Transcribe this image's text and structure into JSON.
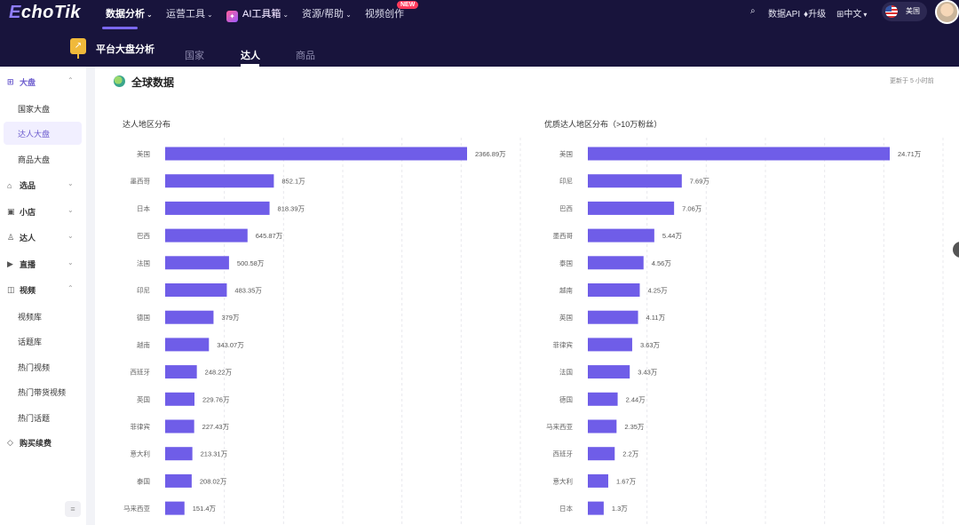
{
  "app": {
    "logo_e": "E",
    "logo_rest": "choTik"
  },
  "topnav": {
    "items": [
      {
        "label": "数据分析",
        "active": true,
        "caret": true
      },
      {
        "label": "运营工具",
        "caret": true
      },
      {
        "label": "AI工具箱",
        "caret": true
      },
      {
        "label": "资源/帮助",
        "caret": true
      },
      {
        "label": "视频创作",
        "badge": "NEW"
      }
    ],
    "search_icon": "search-icon",
    "data_api": "数据API",
    "upgrade": "升级",
    "language": "中文",
    "region": "美国"
  },
  "subnav": {
    "title": "平台大盘分析",
    "tabs": [
      {
        "label": "国家"
      },
      {
        "label": "达人",
        "active": true
      },
      {
        "label": "商品"
      }
    ]
  },
  "sidebar": {
    "groups": [
      {
        "label": "大盘",
        "icon": "grid-icon",
        "expanded": true,
        "active": true
      },
      {
        "label": "选品",
        "icon": "bag-icon"
      },
      {
        "label": "小店",
        "icon": "shop-icon"
      },
      {
        "label": "达人",
        "icon": "person-icon"
      },
      {
        "label": "直播",
        "icon": "live-icon"
      },
      {
        "label": "视频",
        "icon": "video-icon",
        "expanded": true
      },
      {
        "label": "购买续费",
        "icon": "diamond-icon"
      }
    ],
    "dapan_items": [
      "国家大盘",
      "达人大盘",
      "商品大盘"
    ],
    "video_items": [
      "视频库",
      "话题库",
      "热门视频",
      "热门带货视频",
      "热门话题"
    ],
    "active_item": "达人大盘"
  },
  "main": {
    "title": "全球数据",
    "updated": "更新于 5 小时前"
  },
  "chart_data": [
    {
      "type": "bar",
      "orientation": "horizontal",
      "title": "达人地区分布",
      "categories": [
        "美国",
        "墨西哥",
        "日本",
        "巴西",
        "法国",
        "印尼",
        "德国",
        "越南",
        "西班牙",
        "英国",
        "菲律宾",
        "意大利",
        "泰国",
        "马来西亚"
      ],
      "values": [
        2366.89,
        852.1,
        818.39,
        645.87,
        500.58,
        483.35,
        379,
        343.07,
        248.22,
        229.76,
        227.43,
        213.31,
        208.02,
        151.4
      ],
      "labels": [
        "2366.89万",
        "852.1万",
        "818.39万",
        "645.87万",
        "500.58万",
        "483.35万",
        "379万",
        "343.07万",
        "248.22万",
        "229.76万",
        "227.43万",
        "213.31万",
        "208.02万",
        "151.4万"
      ],
      "unit": "万",
      "grid": true
    },
    {
      "type": "bar",
      "orientation": "horizontal",
      "title": "优质达人地区分布（>10万粉丝）",
      "categories": [
        "美国",
        "印尼",
        "巴西",
        "墨西哥",
        "泰国",
        "越南",
        "英国",
        "菲律宾",
        "法国",
        "德国",
        "马来西亚",
        "西班牙",
        "意大利",
        "日本"
      ],
      "values": [
        24.71,
        7.69,
        7.06,
        5.44,
        4.56,
        4.25,
        4.11,
        3.63,
        3.43,
        2.44,
        2.35,
        2.2,
        1.67,
        1.3
      ],
      "labels": [
        "24.71万",
        "7.69万",
        "7.06万",
        "5.44万",
        "4.56万",
        "4.25万",
        "4.11万",
        "3.63万",
        "3.43万",
        "2.44万",
        "2.35万",
        "2.2万",
        "1.67万",
        "1.3万"
      ],
      "unit": "万",
      "grid": true
    }
  ]
}
